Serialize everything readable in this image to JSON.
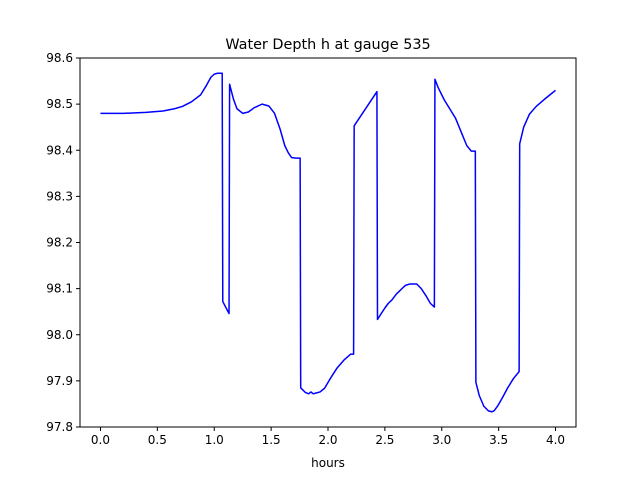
{
  "chart_data": {
    "type": "line",
    "title": "Water Depth h at gauge 535",
    "xlabel": "hours",
    "ylabel": "",
    "xlim": [
      -0.18,
      4.18
    ],
    "ylim": [
      97.8,
      98.6
    ],
    "grid": false,
    "x_ticks": [
      0.0,
      0.5,
      1.0,
      1.5,
      2.0,
      2.5,
      3.0,
      3.5,
      4.0
    ],
    "x_tick_labels": [
      "0.0",
      "0.5",
      "1.0",
      "1.5",
      "2.0",
      "2.5",
      "3.0",
      "3.5",
      "4.0"
    ],
    "y_ticks": [
      97.8,
      97.9,
      98.0,
      98.1,
      98.2,
      98.3,
      98.4,
      98.5,
      98.6
    ],
    "y_tick_labels": [
      "97.8",
      "97.9",
      "98.0",
      "98.1",
      "98.2",
      "98.3",
      "98.4",
      "98.5",
      "98.6"
    ],
    "series": [
      {
        "color": "#0000ff",
        "x": [
          0.0,
          0.2,
          0.4,
          0.55,
          0.65,
          0.72,
          0.8,
          0.88,
          0.93,
          0.97,
          1.0,
          1.03,
          1.05,
          1.07,
          1.075,
          1.13,
          1.135,
          1.17,
          1.2,
          1.25,
          1.3,
          1.35,
          1.42,
          1.48,
          1.53,
          1.58,
          1.62,
          1.65,
          1.68,
          1.72,
          1.755,
          1.76,
          1.8,
          1.83,
          1.85,
          1.87,
          1.9,
          1.93,
          1.97,
          2.02,
          2.08,
          2.14,
          2.2,
          2.225,
          2.23,
          2.43,
          2.435,
          2.46,
          2.5,
          2.53,
          2.56,
          2.6,
          2.65,
          2.68,
          2.72,
          2.78,
          2.82,
          2.86,
          2.9,
          2.935,
          2.94,
          2.97,
          3.02,
          3.07,
          3.12,
          3.17,
          3.22,
          3.26,
          3.295,
          3.3,
          3.33,
          3.37,
          3.41,
          3.44,
          3.46,
          3.49,
          3.53,
          3.58,
          3.63,
          3.68,
          3.685,
          3.72,
          3.77,
          3.83,
          3.9,
          3.96,
          4.0
        ],
        "y": [
          98.48,
          98.48,
          98.482,
          98.485,
          98.49,
          98.495,
          98.505,
          98.52,
          98.54,
          98.558,
          98.565,
          98.567,
          98.567,
          98.567,
          98.072,
          98.046,
          98.543,
          98.51,
          98.49,
          98.48,
          98.483,
          98.492,
          98.5,
          98.496,
          98.48,
          98.445,
          98.41,
          98.395,
          98.384,
          98.383,
          98.383,
          97.885,
          97.875,
          97.872,
          97.876,
          97.872,
          97.874,
          97.876,
          97.884,
          97.905,
          97.928,
          97.945,
          97.958,
          97.958,
          98.453,
          98.527,
          98.033,
          98.043,
          98.058,
          98.068,
          98.075,
          98.088,
          98.1,
          98.107,
          98.11,
          98.11,
          98.1,
          98.085,
          98.068,
          98.06,
          98.554,
          98.535,
          98.51,
          98.49,
          98.47,
          98.44,
          98.41,
          98.398,
          98.398,
          97.897,
          97.868,
          97.845,
          97.835,
          97.833,
          97.835,
          97.845,
          97.862,
          97.885,
          97.905,
          97.92,
          98.414,
          98.45,
          98.478,
          98.495,
          98.51,
          98.522,
          98.53
        ]
      }
    ]
  }
}
